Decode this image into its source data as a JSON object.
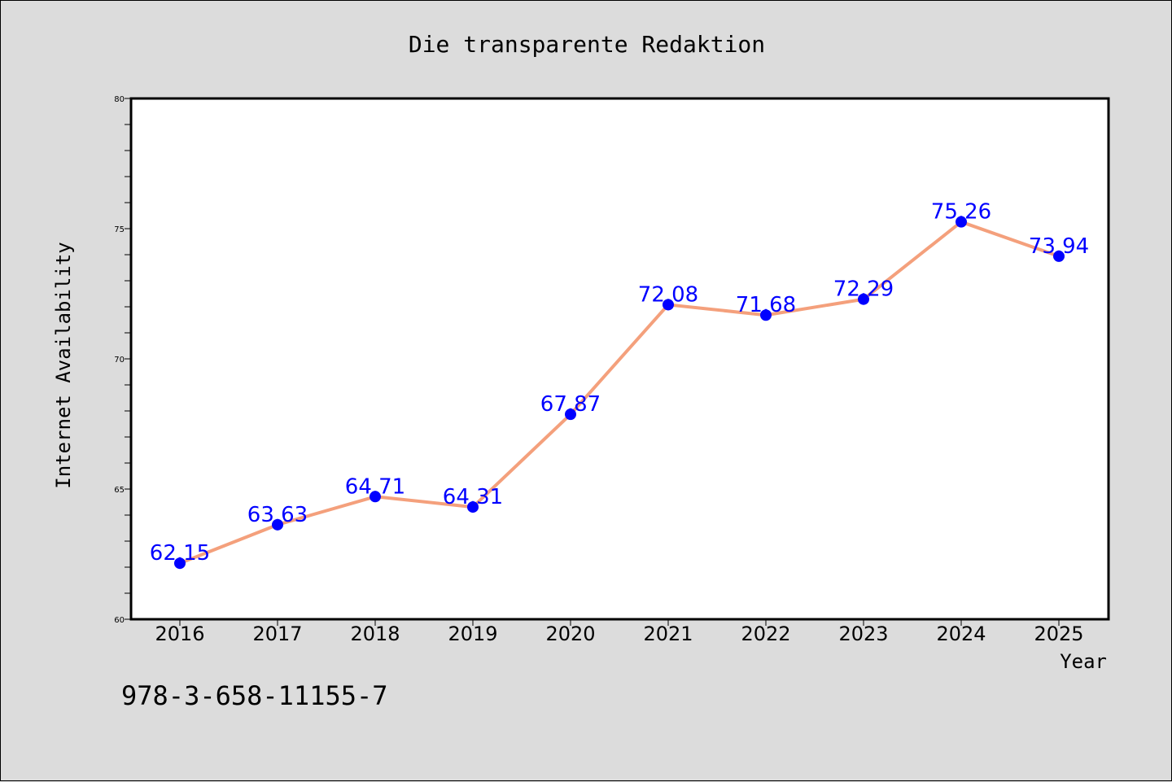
{
  "colors": {
    "background": "#dcdcdc",
    "plot_background": "#ffffff",
    "line": "#f4a07c",
    "marker": "#0000ff",
    "data_label": "#0000ff"
  },
  "footer": {
    "isbn": "978-3-658-11155-7"
  },
  "chart_data": {
    "type": "line",
    "title": "Die transparente Redaktion",
    "xlabel": "Year",
    "ylabel": "Internet Availability",
    "categories": [
      "2016",
      "2017",
      "2018",
      "2019",
      "2020",
      "2021",
      "2022",
      "2023",
      "2024",
      "2025"
    ],
    "series": [
      {
        "values": [
          62.15,
          63.63,
          64.71,
          64.31,
          67.87,
          72.08,
          71.68,
          72.29,
          75.26,
          73.94
        ],
        "labels": [
          "62.15",
          "63.63",
          "64.71",
          "64.31",
          "67.87",
          "72.08",
          "71.68",
          "72.29",
          "75.26",
          "73.94"
        ]
      }
    ],
    "ylim": [
      60,
      80
    ],
    "yticks": [
      "60",
      "65",
      "70",
      "75",
      "80"
    ],
    "y_minor_step": 1,
    "grid": false,
    "legend": "none"
  }
}
